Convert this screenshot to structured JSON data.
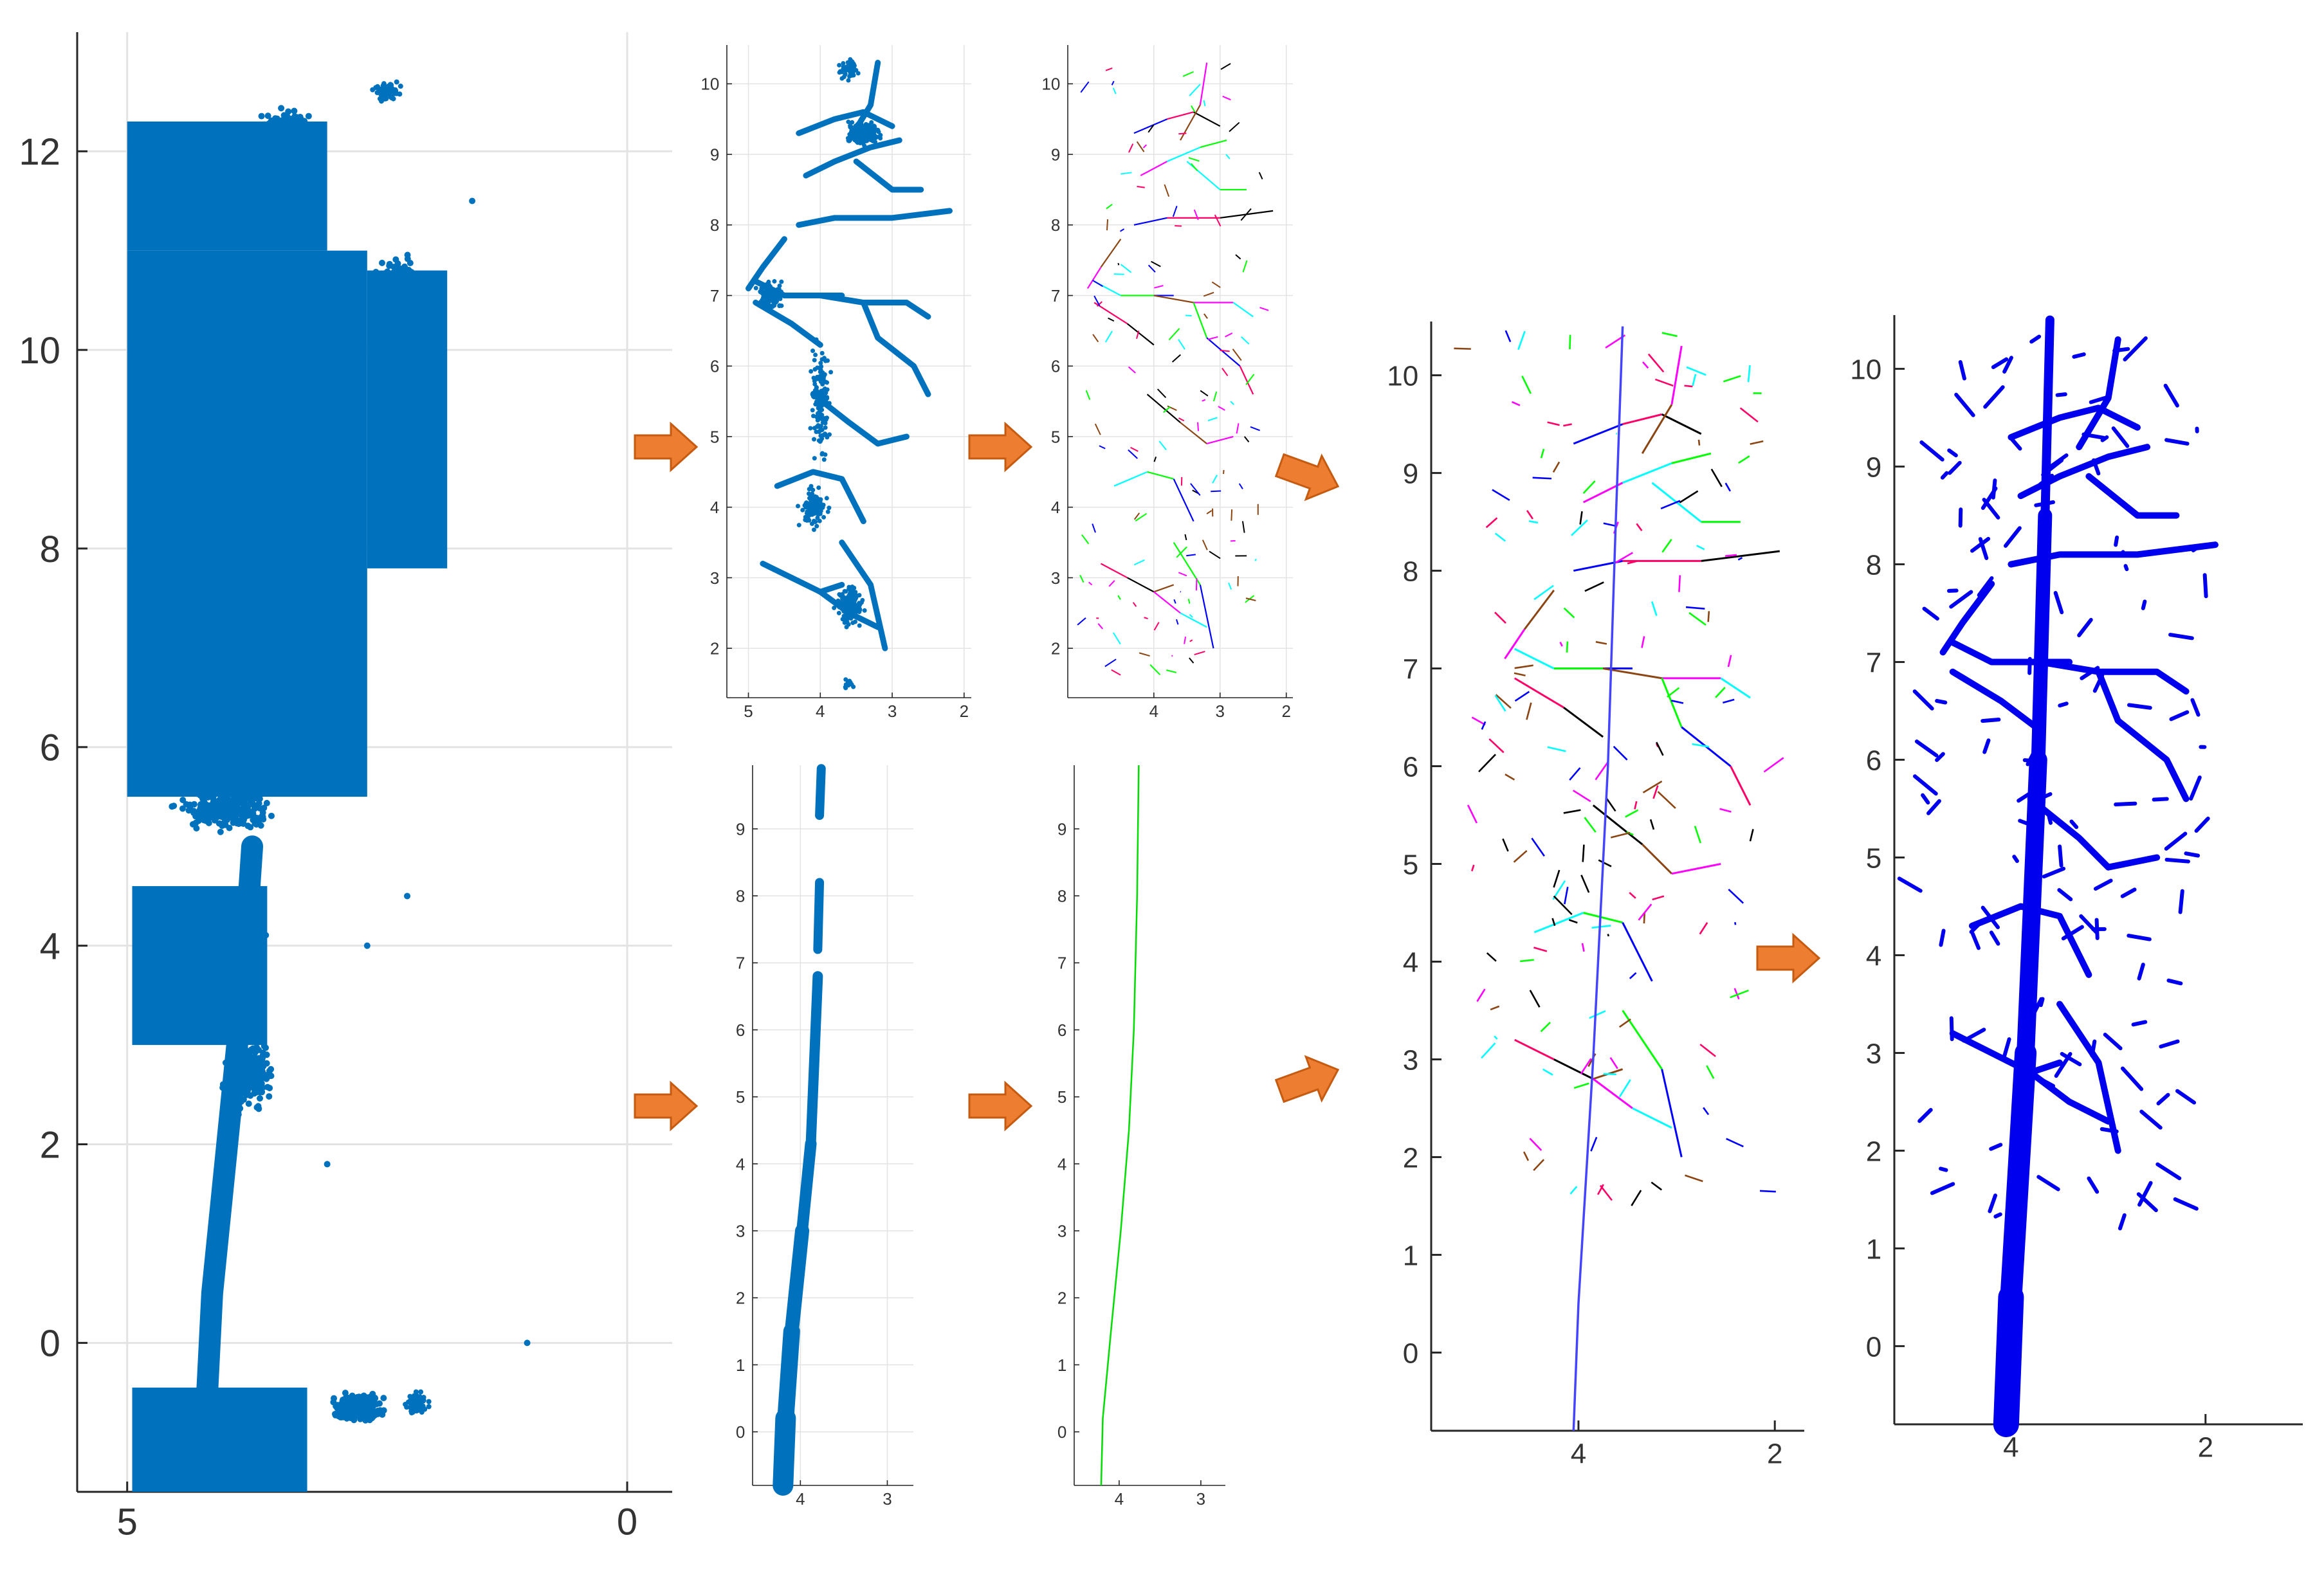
{
  "figure": {
    "description_free": true,
    "arrow_color": "#ED7D31",
    "arrow_edge_color": "#C55A11"
  },
  "chart_data": [
    {
      "id": "raw-point-cloud",
      "type": "scatter",
      "title": "",
      "xlabel": "",
      "ylabel": "",
      "xlim": [
        5.5,
        -0.45
      ],
      "ylim": [
        -1.5,
        13.2
      ],
      "x_ticks": [
        5,
        0
      ],
      "y_ticks": [
        0,
        2,
        4,
        6,
        8,
        10,
        12
      ],
      "x_tick_labels": [
        "5",
        "0"
      ],
      "y_tick_labels": [
        "0",
        "2",
        "4",
        "6",
        "8",
        "10",
        "12"
      ],
      "grid": true,
      "point_color": "#0072BD"
    },
    {
      "id": "branch-points",
      "type": "scatter",
      "title": "",
      "xlabel": "",
      "ylabel": "",
      "xlim": [
        5.3,
        1.9
      ],
      "ylim": [
        1.3,
        10.55
      ],
      "x_ticks": [
        5,
        4,
        3,
        2
      ],
      "y_ticks": [
        2,
        3,
        4,
        5,
        6,
        7,
        8,
        9,
        10
      ],
      "x_tick_labels": [
        "5",
        "4",
        "3",
        "2"
      ],
      "y_tick_labels": [
        "2",
        "3",
        "4",
        "5",
        "6",
        "7",
        "8",
        "9",
        "10"
      ],
      "grid": true,
      "point_color": "#0072BD"
    },
    {
      "id": "branch-skeleton",
      "type": "line",
      "title": "",
      "xlabel": "",
      "ylabel": "",
      "xlim": [
        5.3,
        1.9
      ],
      "ylim": [
        1.3,
        10.55
      ],
      "x_ticks": [
        4,
        3,
        2
      ],
      "y_ticks": [
        2,
        3,
        4,
        5,
        6,
        7,
        8,
        9,
        10
      ],
      "x_tick_labels": [
        "4",
        "3",
        "2"
      ],
      "y_tick_labels": [
        "2",
        "3",
        "4",
        "5",
        "6",
        "7",
        "8",
        "9",
        "10"
      ],
      "grid": true,
      "segment_colors": [
        "#FF00FF",
        "#00FFFF",
        "#00FF00",
        "#0000FF",
        "#FF0066",
        "#000000",
        "#8B4513"
      ]
    },
    {
      "id": "stem-points",
      "type": "scatter",
      "title": "",
      "xlabel": "",
      "ylabel": "",
      "xlim": [
        4.55,
        2.7
      ],
      "ylim": [
        -0.8,
        9.95
      ],
      "x_ticks": [
        4,
        3
      ],
      "y_ticks": [
        0,
        1,
        2,
        3,
        4,
        5,
        6,
        7,
        8,
        9
      ],
      "x_tick_labels": [
        "4",
        "3"
      ],
      "y_tick_labels": [
        "0",
        "1",
        "2",
        "3",
        "4",
        "5",
        "6",
        "7",
        "8",
        "9"
      ],
      "grid": true,
      "point_color": "#0072BD"
    },
    {
      "id": "stem-skeleton",
      "type": "line",
      "title": "",
      "xlabel": "",
      "ylabel": "",
      "xlim": [
        4.55,
        2.7
      ],
      "ylim": [
        -0.8,
        9.95
      ],
      "x_ticks": [
        4,
        3
      ],
      "y_ticks": [
        0,
        1,
        2,
        3,
        4,
        5,
        6,
        7,
        8,
        9
      ],
      "x_tick_labels": [
        "4",
        "3"
      ],
      "y_tick_labels": [
        "0",
        "1",
        "2",
        "3",
        "4",
        "5",
        "6",
        "7",
        "8",
        "9"
      ],
      "grid": false,
      "line_color": "#00DD00",
      "stem_x": [
        4.22,
        4.2,
        4.1,
        3.98,
        3.88,
        3.82,
        3.78,
        3.76
      ],
      "stem_y": [
        -0.8,
        0.2,
        1.5,
        3.0,
        4.5,
        6.0,
        8.0,
        9.95
      ]
    },
    {
      "id": "combined-skeleton",
      "type": "line",
      "title": "",
      "xlabel": "",
      "ylabel": "",
      "xlim": [
        5.5,
        1.7
      ],
      "ylim": [
        -0.8,
        10.55
      ],
      "x_ticks": [
        4,
        2
      ],
      "y_ticks": [
        0,
        1,
        2,
        3,
        4,
        5,
        6,
        7,
        8,
        9,
        10
      ],
      "x_tick_labels": [
        "4",
        "2"
      ],
      "y_tick_labels": [
        "0",
        "1",
        "2",
        "3",
        "4",
        "5",
        "6",
        "7",
        "8",
        "9",
        "10"
      ],
      "grid": false,
      "stem_color": "#4444FF",
      "stem_x": [
        4.05,
        4.0,
        3.85,
        3.7,
        3.62,
        3.55
      ],
      "stem_y": [
        -0.8,
        0.5,
        3.0,
        6.0,
        8.5,
        10.5
      ]
    },
    {
      "id": "reconstructed-tree",
      "type": "line",
      "title": "",
      "xlabel": "",
      "ylabel": "",
      "xlim": [
        5.2,
        1.0
      ],
      "ylim": [
        -0.8,
        10.55
      ],
      "x_ticks": [
        4,
        2
      ],
      "y_ticks": [
        0,
        1,
        2,
        3,
        4,
        5,
        6,
        7,
        8,
        9,
        10
      ],
      "x_tick_labels": [
        "4",
        "2"
      ],
      "y_tick_labels": [
        "0",
        "1",
        "2",
        "3",
        "4",
        "5",
        "6",
        "7",
        "8",
        "9",
        "10"
      ],
      "grid": false,
      "line_color": "#0000EE",
      "stem_x": [
        4.05,
        4.0,
        3.85,
        3.72,
        3.65,
        3.6
      ],
      "stem_y": [
        -0.8,
        0.5,
        3.0,
        6.0,
        8.5,
        10.5
      ]
    }
  ]
}
